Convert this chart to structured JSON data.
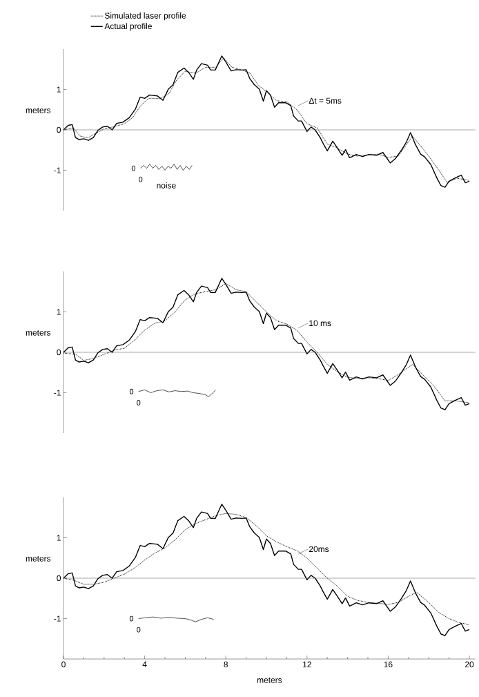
{
  "chart_data": [
    {
      "type": "line",
      "ylabel": "meters",
      "xlim": [
        0,
        20.3
      ],
      "ylim": [
        -2,
        2
      ],
      "yticks": [
        -1,
        0,
        1
      ],
      "tick_labels": "y",
      "legend": "top",
      "grid": false,
      "series": [
        {
          "name": "Simulated laser profile",
          "color": "#000000",
          "line_style": "dotted",
          "x": [
            0,
            0.5,
            0.8,
            1.2,
            1.6,
            2,
            2.5,
            3,
            3.4,
            3.8,
            4.2,
            4.8,
            5.2,
            5.6,
            6,
            6.5,
            7,
            7.5,
            7.9,
            8.3,
            8.8,
            9.2,
            9.6,
            10,
            10.5,
            11,
            11.5,
            12,
            12.5,
            13,
            13.5,
            14,
            14.5,
            15,
            15.5,
            16,
            16.5,
            17.2,
            17.6,
            18,
            18.5,
            18.9,
            19.4,
            20
          ],
          "values": [
            0,
            0.05,
            -0.15,
            -0.2,
            -0.08,
            0.02,
            0.08,
            0.15,
            0.3,
            0.6,
            0.78,
            0.78,
            0.9,
            1.25,
            1.45,
            1.4,
            1.55,
            1.55,
            1.78,
            1.55,
            1.48,
            1.4,
            1.1,
            0.95,
            0.72,
            0.7,
            0.5,
            0.15,
            0.05,
            -0.35,
            -0.45,
            -0.6,
            -0.65,
            -0.62,
            -0.6,
            -0.68,
            -0.65,
            -0.15,
            -0.4,
            -0.65,
            -1.0,
            -1.3,
            -1.2,
            -1.25
          ]
        },
        {
          "name": "Actual profile",
          "color": "#000000",
          "line_style": "solid",
          "x": [
            0,
            0.23,
            0.43,
            0.59,
            0.77,
            1.0,
            1.23,
            1.47,
            1.7,
            1.93,
            2.16,
            2.4,
            2.62,
            2.93,
            3.24,
            3.55,
            3.78,
            4.0,
            4.24,
            4.63,
            4.9,
            5.17,
            5.4,
            5.63,
            5.94,
            6.17,
            6.4,
            6.56,
            6.8,
            7.1,
            7.25,
            7.48,
            7.8,
            8.0,
            8.26,
            8.5,
            8.8,
            9.0,
            9.18,
            9.4,
            9.65,
            9.85,
            10.0,
            10.2,
            10.4,
            10.6,
            10.96,
            11.2,
            11.34,
            11.57,
            11.73,
            12.0,
            12.2,
            12.4,
            12.65,
            12.8,
            13.0,
            13.27,
            13.5,
            13.73,
            13.9,
            14.1,
            14.43,
            14.74,
            15.05,
            15.43,
            15.74,
            16.1,
            16.36,
            16.67,
            16.9,
            17.1,
            17.35,
            17.6,
            17.8,
            18.1,
            18.4,
            18.6,
            18.8,
            19.0,
            19.3,
            19.6,
            19.8,
            20.0
          ],
          "values": [
            0,
            0.11,
            0.13,
            -0.19,
            -0.24,
            -0.22,
            -0.26,
            -0.19,
            -0.01,
            0.07,
            0.09,
            0,
            0.16,
            0.19,
            0.3,
            0.52,
            0.81,
            0.78,
            0.86,
            0.84,
            0.73,
            1.01,
            1.12,
            1.42,
            1.53,
            1.42,
            1.25,
            1.48,
            1.64,
            1.6,
            1.48,
            1.48,
            1.83,
            1.68,
            1.46,
            1.49,
            1.48,
            1.49,
            1.27,
            1.12,
            1.01,
            0.71,
            0.97,
            0.86,
            0.56,
            0.67,
            0.67,
            0.6,
            0.34,
            0.22,
            0.22,
            -0.04,
            0.07,
            0,
            -0.19,
            -0.34,
            -0.52,
            -0.28,
            -0.45,
            -0.63,
            -0.49,
            -0.69,
            -0.61,
            -0.66,
            -0.61,
            -0.63,
            -0.56,
            -0.82,
            -0.71,
            -0.49,
            -0.3,
            -0.07,
            -0.37,
            -0.6,
            -0.67,
            -0.86,
            -1.19,
            -1.38,
            -1.42,
            -1.27,
            -1.19,
            -1.12,
            -1.31,
            -1.27
          ]
        },
        {
          "name": "noise",
          "color": "#000000",
          "line_style": "solid",
          "x": [
            3.8,
            3.95,
            4.1,
            4.25,
            4.4,
            4.55,
            4.7,
            4.85,
            5.0,
            5.15,
            5.3,
            5.45,
            5.6,
            5.75,
            5.9,
            6.05,
            6.2,
            6.33
          ],
          "values": [
            -0.95,
            -0.88,
            -0.95,
            -0.85,
            -0.95,
            -0.88,
            -0.98,
            -0.9,
            -1.0,
            -0.9,
            -0.95,
            -0.85,
            -0.98,
            -0.88,
            -1.0,
            -0.9,
            -0.98,
            -0.88
          ]
        }
      ],
      "ref_lines": [
        {
          "axis": "y",
          "value": 0
        }
      ],
      "annotations": [
        "Δt = 5ms",
        "0",
        "0"
      ]
    },
    {
      "type": "line",
      "ylabel": "meters",
      "xlim": [
        0,
        20.3
      ],
      "ylim": [
        -2,
        2
      ],
      "yticks": [
        -1,
        0,
        1
      ],
      "tick_labels": "y",
      "grid": false,
      "series": [
        {
          "color": "#000000",
          "line_style": "dotted",
          "x": [
            0,
            0.6,
            1,
            1.5,
            2,
            2.5,
            3,
            3.5,
            4,
            4.5,
            5,
            5.5,
            6,
            6.5,
            7,
            7.5,
            8,
            8.5,
            9,
            9.5,
            10,
            10.5,
            11,
            11.5,
            12,
            12.5,
            13,
            13.5,
            14,
            14.5,
            15,
            15.5,
            16,
            16.5,
            17.2,
            17.7,
            18.2,
            18.8,
            19.3,
            20
          ],
          "values": [
            -0.02,
            -0.05,
            -0.2,
            -0.15,
            -0.05,
            0.05,
            0.1,
            0.3,
            0.55,
            0.72,
            0.78,
            1.0,
            1.3,
            1.45,
            1.5,
            1.55,
            1.7,
            1.55,
            1.5,
            1.25,
            1.0,
            0.78,
            0.7,
            0.55,
            0.25,
            0.0,
            -0.3,
            -0.48,
            -0.62,
            -0.65,
            -0.63,
            -0.65,
            -0.7,
            -0.55,
            -0.3,
            -0.55,
            -0.8,
            -1.2,
            -1.2,
            -1.25
          ]
        },
        {
          "color": "#000000",
          "line_style": "solid",
          "x": [
            0,
            0.23,
            0.43,
            0.59,
            0.77,
            1.0,
            1.23,
            1.47,
            1.7,
            1.93,
            2.16,
            2.4,
            2.62,
            2.93,
            3.24,
            3.55,
            3.78,
            4.0,
            4.24,
            4.63,
            4.9,
            5.17,
            5.4,
            5.63,
            5.94,
            6.17,
            6.4,
            6.56,
            6.8,
            7.1,
            7.25,
            7.48,
            7.8,
            8.0,
            8.26,
            8.5,
            8.8,
            9.0,
            9.18,
            9.4,
            9.65,
            9.85,
            10.0,
            10.2,
            10.4,
            10.6,
            10.96,
            11.2,
            11.34,
            11.57,
            11.73,
            12.0,
            12.2,
            12.4,
            12.65,
            12.8,
            13.0,
            13.27,
            13.5,
            13.73,
            13.9,
            14.1,
            14.43,
            14.74,
            15.05,
            15.43,
            15.74,
            16.1,
            16.36,
            16.67,
            16.9,
            17.1,
            17.35,
            17.6,
            17.8,
            18.1,
            18.4,
            18.6,
            18.8,
            19.0,
            19.3,
            19.6,
            19.8,
            20.0
          ],
          "values": [
            0,
            0.11,
            0.13,
            -0.19,
            -0.24,
            -0.22,
            -0.26,
            -0.19,
            -0.01,
            0.07,
            0.09,
            0,
            0.16,
            0.19,
            0.3,
            0.52,
            0.81,
            0.78,
            0.86,
            0.84,
            0.73,
            1.01,
            1.12,
            1.42,
            1.53,
            1.42,
            1.25,
            1.48,
            1.64,
            1.6,
            1.48,
            1.48,
            1.83,
            1.68,
            1.46,
            1.49,
            1.48,
            1.49,
            1.27,
            1.12,
            1.01,
            0.71,
            0.97,
            0.86,
            0.56,
            0.67,
            0.67,
            0.6,
            0.34,
            0.22,
            0.22,
            -0.04,
            0.07,
            0,
            -0.19,
            -0.34,
            -0.52,
            -0.28,
            -0.45,
            -0.63,
            -0.49,
            -0.69,
            -0.61,
            -0.66,
            -0.61,
            -0.63,
            -0.56,
            -0.82,
            -0.71,
            -0.49,
            -0.3,
            -0.07,
            -0.37,
            -0.6,
            -0.67,
            -0.86,
            -1.19,
            -1.38,
            -1.42,
            -1.27,
            -1.19,
            -1.12,
            -1.31,
            -1.27
          ]
        },
        {
          "color": "#000000",
          "line_style": "solid",
          "x": [
            3.7,
            4.0,
            4.3,
            4.6,
            4.9,
            5.2,
            5.5,
            5.8,
            6.1,
            6.4,
            6.7,
            7.0,
            7.15,
            7.3,
            7.5
          ],
          "values": [
            -0.97,
            -0.93,
            -1.0,
            -0.95,
            -0.93,
            -0.98,
            -0.95,
            -0.97,
            -0.96,
            -1.0,
            -1.02,
            -1.05,
            -1.1,
            -1.03,
            -0.93
          ]
        }
      ],
      "ref_lines": [
        {
          "axis": "y",
          "value": 0
        }
      ],
      "annotations": [
        "10 ms",
        "0",
        "0"
      ]
    },
    {
      "type": "line",
      "ylabel": "meters",
      "xlabel": "meters",
      "xlim": [
        0,
        20.3
      ],
      "ylim": [
        -2,
        2
      ],
      "yticks": [
        -1,
        0,
        1
      ],
      "grid": false,
      "xticks": [
        0,
        {
          "value": 1,
          "label": null
        },
        {
          "value": 2,
          "label": null
        },
        {
          "value": 3,
          "label": null
        },
        4,
        {
          "value": 5,
          "label": null
        },
        {
          "value": 6,
          "label": null
        },
        {
          "value": 7,
          "label": null
        },
        8,
        {
          "value": 9,
          "label": null
        },
        {
          "value": 10,
          "label": null
        },
        {
          "value": 11,
          "label": null
        },
        12,
        {
          "value": 13,
          "label": null
        },
        {
          "value": 14,
          "label": null
        },
        {
          "value": 15,
          "label": null
        },
        16,
        {
          "value": 17,
          "label": null
        },
        {
          "value": 18,
          "label": null
        },
        {
          "value": 19,
          "label": null
        },
        20
      ],
      "series": [
        {
          "color": "#000000",
          "line_style": "dotted",
          "x": [
            0,
            0.5,
            1,
            1.5,
            2,
            2.5,
            3,
            3.5,
            4,
            4.5,
            5,
            5.5,
            6,
            6.5,
            7,
            7.5,
            8,
            8.5,
            9,
            9.5,
            10,
            10.5,
            11,
            11.5,
            12,
            12.5,
            13,
            13.5,
            14,
            14.5,
            15,
            15.5,
            16,
            16.5,
            17,
            17.4,
            18,
            18.5,
            19,
            19.5,
            20
          ],
          "values": [
            0,
            -0.05,
            -0.15,
            -0.15,
            -0.1,
            0.0,
            0.1,
            0.25,
            0.45,
            0.62,
            0.75,
            0.95,
            1.2,
            1.35,
            1.45,
            1.55,
            1.6,
            1.58,
            1.5,
            1.3,
            1.05,
            0.9,
            0.78,
            0.68,
            0.5,
            0.25,
            0.0,
            -0.2,
            -0.45,
            -0.55,
            -0.6,
            -0.62,
            -0.65,
            -0.6,
            -0.45,
            -0.35,
            -0.6,
            -0.85,
            -1.0,
            -1.1,
            -1.15
          ]
        },
        {
          "color": "#000000",
          "line_style": "solid",
          "x": [
            0,
            0.23,
            0.43,
            0.59,
            0.77,
            1.0,
            1.23,
            1.47,
            1.7,
            1.93,
            2.16,
            2.4,
            2.62,
            2.93,
            3.24,
            3.55,
            3.78,
            4.0,
            4.24,
            4.63,
            4.9,
            5.17,
            5.4,
            5.63,
            5.94,
            6.17,
            6.4,
            6.56,
            6.8,
            7.1,
            7.25,
            7.48,
            7.8,
            8.0,
            8.26,
            8.5,
            8.8,
            9.0,
            9.18,
            9.4,
            9.65,
            9.85,
            10.0,
            10.2,
            10.4,
            10.6,
            10.96,
            11.2,
            11.34,
            11.57,
            11.73,
            12.0,
            12.2,
            12.4,
            12.65,
            12.8,
            13.0,
            13.27,
            13.5,
            13.73,
            13.9,
            14.1,
            14.43,
            14.74,
            15.05,
            15.43,
            15.74,
            16.1,
            16.36,
            16.67,
            16.9,
            17.1,
            17.35,
            17.6,
            17.8,
            18.1,
            18.4,
            18.6,
            18.8,
            19.0,
            19.3,
            19.6,
            19.8,
            20.0
          ],
          "values": [
            0,
            0.11,
            0.13,
            -0.19,
            -0.24,
            -0.22,
            -0.26,
            -0.19,
            -0.01,
            0.07,
            0.09,
            0,
            0.16,
            0.19,
            0.3,
            0.52,
            0.81,
            0.78,
            0.86,
            0.84,
            0.73,
            1.01,
            1.12,
            1.42,
            1.53,
            1.42,
            1.25,
            1.48,
            1.64,
            1.6,
            1.48,
            1.48,
            1.83,
            1.68,
            1.46,
            1.49,
            1.48,
            1.49,
            1.27,
            1.12,
            1.01,
            0.71,
            0.97,
            0.86,
            0.56,
            0.67,
            0.67,
            0.6,
            0.34,
            0.22,
            0.22,
            -0.04,
            0.07,
            0,
            -0.19,
            -0.34,
            -0.52,
            -0.28,
            -0.45,
            -0.63,
            -0.49,
            -0.69,
            -0.61,
            -0.66,
            -0.61,
            -0.63,
            -0.56,
            -0.82,
            -0.71,
            -0.49,
            -0.3,
            -0.07,
            -0.37,
            -0.6,
            -0.67,
            -0.86,
            -1.19,
            -1.38,
            -1.42,
            -1.27,
            -1.19,
            -1.12,
            -1.31,
            -1.27
          ]
        },
        {
          "color": "#000000",
          "line_style": "solid",
          "x": [
            3.7,
            4.0,
            4.4,
            4.8,
            5.2,
            5.6,
            6.0,
            6.3,
            6.5,
            6.8,
            7.1,
            7.4
          ],
          "values": [
            -1.0,
            -0.98,
            -0.96,
            -0.99,
            -0.97,
            -0.99,
            -1.0,
            -1.04,
            -1.08,
            -1.02,
            -0.98,
            -1.02
          ]
        }
      ],
      "ref_lines": [
        {
          "axis": "y",
          "value": 0
        }
      ],
      "annotations": [
        "20ms",
        "0",
        "0"
      ]
    }
  ]
}
